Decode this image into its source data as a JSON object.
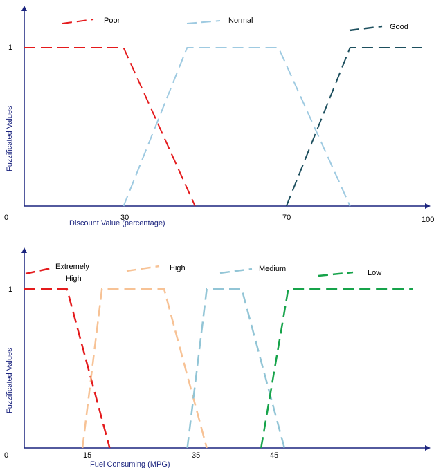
{
  "chart_data": [
    {
      "type": "line",
      "title": "",
      "xlabel": "Discount Value (percentage)",
      "ylabel": "Fuzzificated Values",
      "xlim": [
        0,
        100
      ],
      "ylim": [
        0,
        1.2
      ],
      "grid": false,
      "legend_position": "top",
      "x_ticks": [
        "0",
        "30",
        "70",
        "100"
      ],
      "y_ticks": [
        "1"
      ],
      "series": [
        {
          "name": "Poor",
          "color": "#e41a1c",
          "points": [
            [
              0,
              1
            ],
            [
              25,
              1
            ],
            [
              43,
              0
            ]
          ]
        },
        {
          "name": "Normal",
          "color": "#9ecae1",
          "points": [
            [
              25,
              0
            ],
            [
              41,
              1
            ],
            [
              64,
              1
            ],
            [
              82,
              0
            ]
          ]
        },
        {
          "name": "Good",
          "color": "#1d4f5e",
          "points": [
            [
              66,
              0
            ],
            [
              82,
              1
            ],
            [
              100,
              1
            ]
          ]
        }
      ]
    },
    {
      "type": "line",
      "title": "",
      "xlabel": "Fuel Consuming (MPG)",
      "ylabel": "Fuzzificated Values",
      "xlim": [
        0,
        100
      ],
      "ylim": [
        0,
        1.2
      ],
      "grid": false,
      "legend_position": "top",
      "x_ticks": [
        "0",
        "15",
        "35",
        "45"
      ],
      "y_ticks": [
        "1"
      ],
      "series": [
        {
          "name": "Extremely High",
          "color": "#e41a1c",
          "points": [
            [
              0,
              1
            ],
            [
              11,
              1
            ],
            [
              22,
              0
            ]
          ]
        },
        {
          "name": "High",
          "color": "#f7c295",
          "points": [
            [
              15,
              0
            ],
            [
              20,
              1
            ],
            [
              36,
              1
            ],
            [
              47,
              0
            ]
          ]
        },
        {
          "name": "Medium",
          "color": "#92c5d6",
          "points": [
            [
              42,
              0
            ],
            [
              47,
              1
            ],
            [
              56,
              1
            ],
            [
              67,
              0
            ]
          ]
        },
        {
          "name": "Low",
          "color": "#16a34a",
          "points": [
            [
              61,
              0
            ],
            [
              68,
              1
            ],
            [
              100,
              1
            ]
          ]
        }
      ]
    }
  ],
  "legend_top": [
    {
      "label": "Poor",
      "color": "#e41a1c"
    },
    {
      "label": "Normal",
      "color": "#9ecae1"
    },
    {
      "label": "Good",
      "color": "#1d4f5e"
    }
  ],
  "legend_bottom": [
    {
      "label_line1": "Extremely",
      "label_line2": "High",
      "color": "#e41a1c"
    },
    {
      "label": "High",
      "color": "#f7c295"
    },
    {
      "label": "Medium",
      "color": "#92c5d6"
    },
    {
      "label": "Low",
      "color": "#16a34a"
    }
  ]
}
